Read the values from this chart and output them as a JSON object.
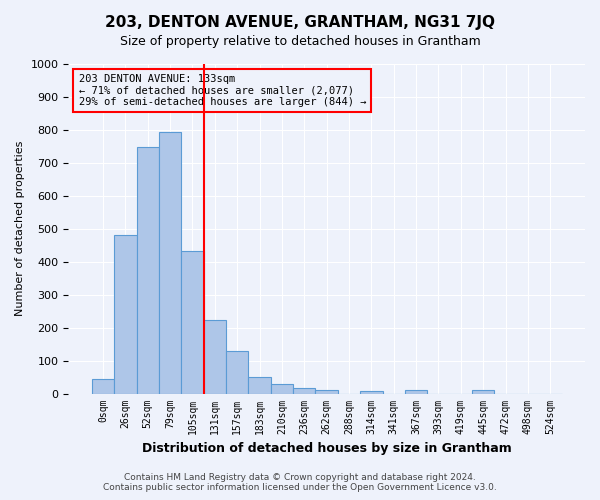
{
  "title": "203, DENTON AVENUE, GRANTHAM, NG31 7JQ",
  "subtitle": "Size of property relative to detached houses in Grantham",
  "xlabel": "Distribution of detached houses by size in Grantham",
  "ylabel": "Number of detached properties",
  "footer_line1": "Contains HM Land Registry data © Crown copyright and database right 2024.",
  "footer_line2": "Contains public sector information licensed under the Open Government Licence v3.0.",
  "bin_labels": [
    "0sqm",
    "26sqm",
    "52sqm",
    "79sqm",
    "105sqm",
    "131sqm",
    "157sqm",
    "183sqm",
    "210sqm",
    "236sqm",
    "262sqm",
    "288sqm",
    "314sqm",
    "341sqm",
    "367sqm",
    "393sqm",
    "419sqm",
    "445sqm",
    "472sqm",
    "498sqm",
    "524sqm"
  ],
  "bar_values": [
    45,
    480,
    748,
    795,
    433,
    222,
    130,
    50,
    30,
    18,
    10,
    0,
    8,
    0,
    10,
    0,
    0,
    10,
    0,
    0,
    0
  ],
  "bar_color": "#aec6e8",
  "bar_edge_color": "#5b9bd5",
  "vline_color": "red",
  "vline_x": 4.5,
  "ylim": [
    0,
    1000
  ],
  "yticks": [
    0,
    100,
    200,
    300,
    400,
    500,
    600,
    700,
    800,
    900,
    1000
  ],
  "annotation_title": "203 DENTON AVENUE: 133sqm",
  "annotation_line1": "← 71% of detached houses are smaller (2,077)",
  "annotation_line2": "29% of semi-detached houses are larger (844) →",
  "annotation_box_color": "red",
  "background_color": "#eef2fb",
  "grid_color": "white"
}
